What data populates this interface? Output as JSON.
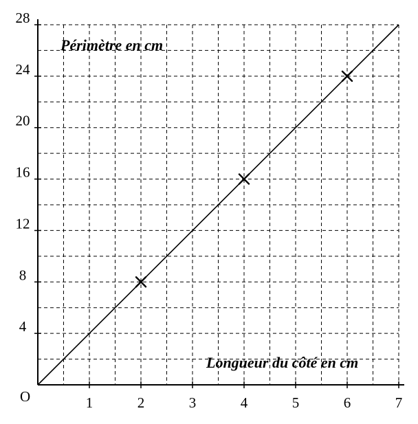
{
  "chart_data": {
    "type": "line",
    "title": "",
    "xlabel": "Longueur du côté en cm",
    "ylabel": "Périmètre en cm",
    "origin_label": "O",
    "xlim": [
      0,
      7
    ],
    "ylim": [
      0,
      28
    ],
    "x_ticks": [
      1,
      2,
      3,
      4,
      5,
      6,
      7
    ],
    "y_ticks": [
      4,
      8,
      12,
      16,
      20,
      24,
      28
    ],
    "grid": true,
    "grid_minor_step": {
      "x": 0.5,
      "y": 2
    },
    "series": [
      {
        "x": [
          0,
          7
        ],
        "y": [
          0,
          28
        ]
      }
    ],
    "marked_points": [
      {
        "x": 2,
        "y": 8
      },
      {
        "x": 4,
        "y": 16
      },
      {
        "x": 6,
        "y": 24
      }
    ]
  }
}
